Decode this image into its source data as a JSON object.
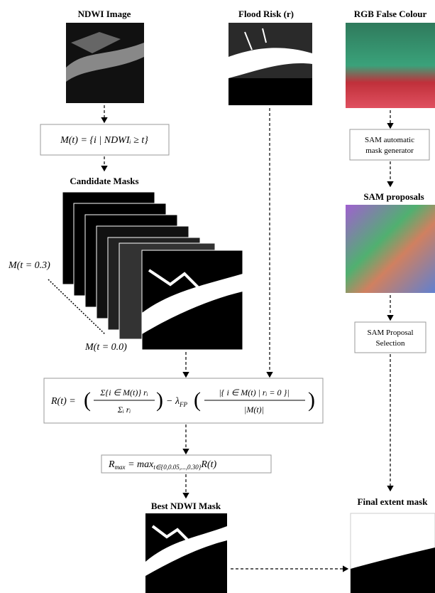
{
  "columns": {
    "ndwi_title": "NDWI Image",
    "flood_title": "Flood Risk (r)",
    "rgb_title": "RGB False Colour"
  },
  "threshold_formula": "M(t) = {i | NDWIᵢ ≥ t}",
  "candidate": {
    "title": "Candidate Masks",
    "top_label": "M(t = 0.3)",
    "bottom_label": "M(t = 0.0)"
  },
  "reward": {
    "lhs": "R(t) =",
    "num1": "Σ{i ∈ M(t)} rᵢ",
    "den1": "Σᵢ rᵢ",
    "lambda": "− λ",
    "lambda_sub": "FP",
    "num2": "|{ i ∈ M(t) | rᵢ = 0 }|",
    "den2": "|M(t)|"
  },
  "rmax": {
    "r": "R",
    "r_sub": "max",
    "mid": " = max",
    "mid_sub": "t∈{0,0.05,...,0.30}",
    "end": "R(t)"
  },
  "best_title": "Best NDWI Mask",
  "sam": {
    "generator": [
      "SAM automatic",
      "mask generator"
    ],
    "proposals_title": "SAM proposals",
    "selection": [
      "SAM Proposal",
      "Selection"
    ],
    "final_title": "Final extent mask"
  }
}
